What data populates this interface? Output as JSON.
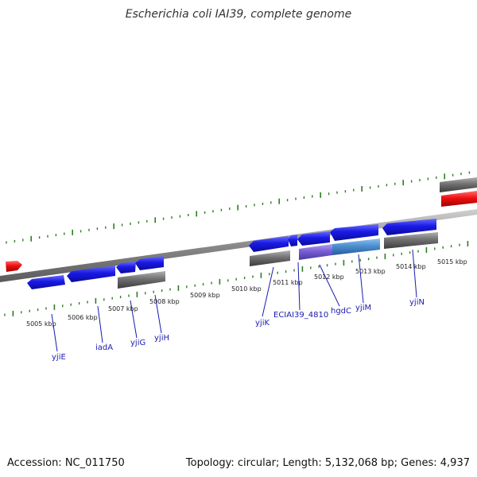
{
  "title": "Escherichia coli IAI39, complete genome",
  "footer": {
    "accession": "Accession: NC_011750",
    "summary": "Topology: circular; Length: 5,132,068 bp; Genes: 4,937"
  },
  "colors": {
    "backbone": "#8a8a8a",
    "tick": "#2e7d22",
    "gene_forward": "#1010e0",
    "gene_gray": "#6e6e6e",
    "gene_red": "#e01010",
    "gene_purple": "#7a5cd6",
    "gene_lightblue": "#4a8fd0",
    "label": "#1a1ab0",
    "kbp_text": "#222222"
  },
  "kbp_labels": [
    "5005 kbp",
    "5006 kbp",
    "5007 kbp",
    "5008 kbp",
    "5009 kbp",
    "5010 kbp",
    "5011 kbp",
    "5012 kbp",
    "5013 kbp",
    "5014 kbp",
    "5015 kbp"
  ],
  "gene_labels": [
    "yjiE",
    "iadA",
    "yjiG",
    "yjiH",
    "yjiK",
    "ECIAI39_4810",
    "hgdC",
    "yjiM",
    "yjiN"
  ]
}
